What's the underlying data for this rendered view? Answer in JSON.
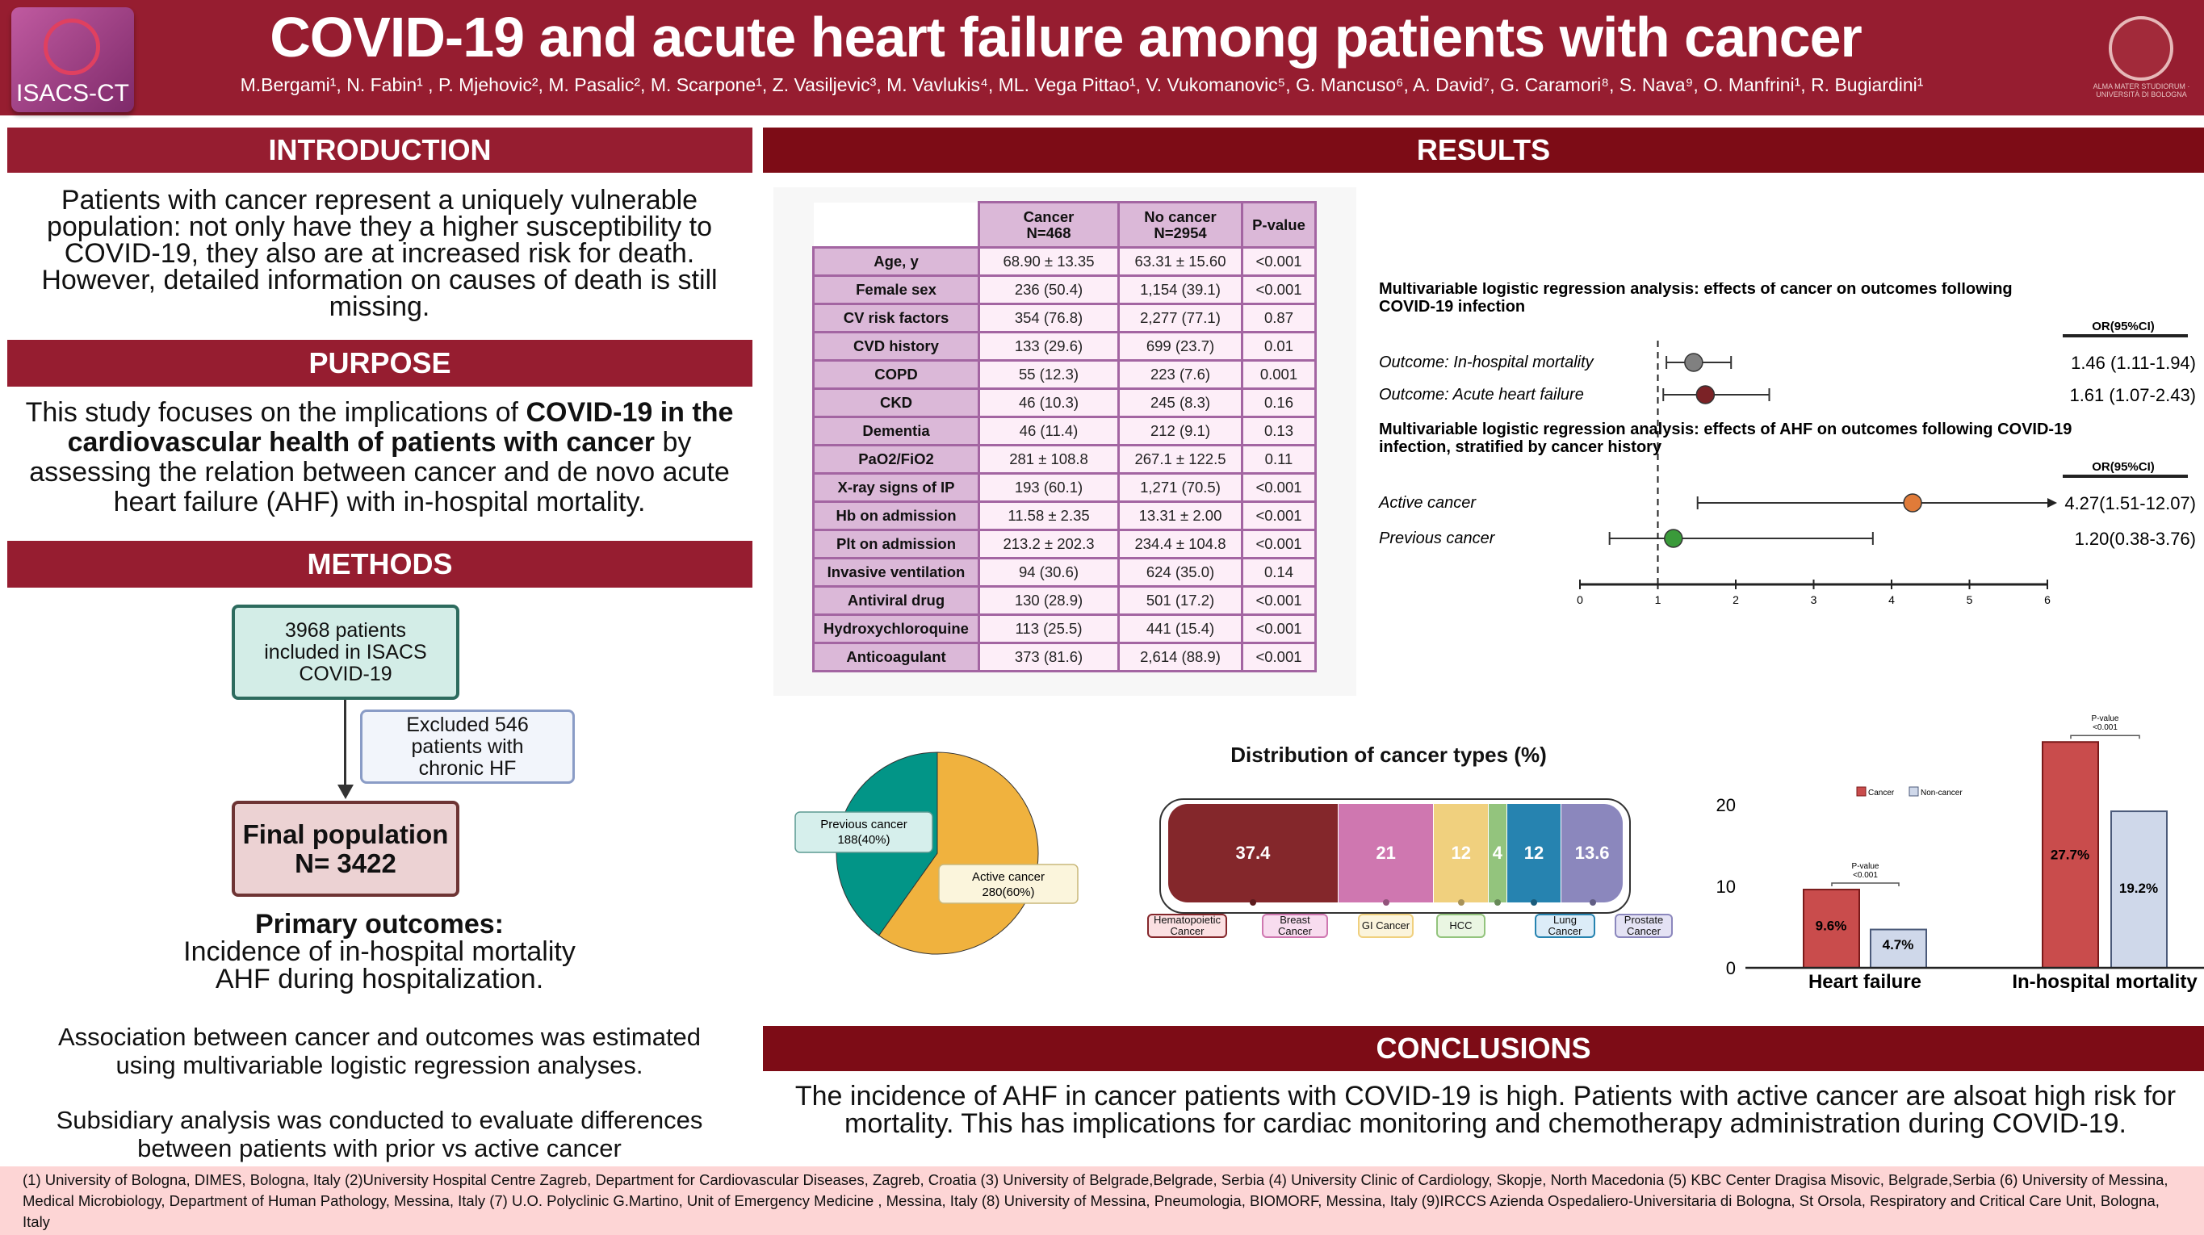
{
  "header": {
    "title": "COVID-19 and acute heart failure among patients with cancer",
    "authors": "M.Bergami¹,  N. Fabin¹ ,  P. Mjehovic²,   M. Pasalic²,  M. Scarpone¹, Z. Vasiljevic³,  M. Vavlukis⁴,  ML. Vega Pittao¹, V. Vukomanovic⁵,   G. Mancuso⁶,  A. David⁷,  G. Caramori⁸,  S. Nava⁹,  O. Manfrini¹,  R. Bugiardini¹",
    "logo_text": "ISACS-CT",
    "seal_text": "ALMA MATER STUDIORUM · UNIVERSITÀ DI BOLOGNA"
  },
  "introduction": {
    "heading": "INTRODUCTION",
    "text": "Patients with cancer represent a uniquely vulnerable population: not only have they a higher susceptibility to COVID-19, they also are at increased risk for death. However, detailed information on causes of death is still missing."
  },
  "purpose": {
    "heading": "PURPOSE",
    "text_1": "This study focuses on the implications of ",
    "bold_1": "COVID-19 in the cardiovascular health of patients with cancer",
    "text_2": "  by assessing the relation between cancer and de novo acute heart failure (AHF) with in-hospital mortality."
  },
  "methods": {
    "heading": "METHODS",
    "box_included": "3968 patients included in ISACS COVID-19",
    "box_excluded": "Excluded 546 patients with chronic HF",
    "box_final_1": "Final population",
    "box_final_2": "N= 3422",
    "primary_title": "Primary outcomes:",
    "primary_1": "Incidence of in-hospital mortality",
    "primary_2": "AHF during hospitalization.",
    "association": "Association between cancer and outcomes was estimated using multivariable logistic regression analyses.",
    "subsidiary": "Subsidiary analysis was conducted to evaluate differences between patients with prior vs active cancer"
  },
  "results": {
    "heading": "RESULTS"
  },
  "table": {
    "headers": [
      "",
      "Cancer\nN=468",
      "No cancer\nN=2954",
      "P-value"
    ],
    "rows": [
      [
        "Age, y",
        "68.90 ± 13.35",
        "63.31 ± 15.60",
        "<0.001"
      ],
      [
        "Female sex",
        "236 (50.4)",
        "1,154 (39.1)",
        "<0.001"
      ],
      [
        "CV risk factors",
        "354 (76.8)",
        "2,277 (77.1)",
        "0.87"
      ],
      [
        "CVD history",
        "133 (29.6)",
        "699 (23.7)",
        "0.01"
      ],
      [
        "COPD",
        "55 (12.3)",
        "223 (7.6)",
        "0.001"
      ],
      [
        "CKD",
        "46 (10.3)",
        "245 (8.3)",
        "0.16"
      ],
      [
        "Dementia",
        "46 (11.4)",
        "212 (9.1)",
        "0.13"
      ],
      [
        "PaO2/FiO2",
        "281 ± 108.8",
        "267.1 ± 122.5",
        "0.11"
      ],
      [
        "X-ray signs of IP",
        "193 (60.1)",
        "1,271 (70.5)",
        "<0.001"
      ],
      [
        "Hb on admission",
        "11.58 ± 2.35",
        "13.31 ± 2.00",
        "<0.001"
      ],
      [
        "Plt on admission",
        "213.2 ± 202.3",
        "234.4 ± 104.8",
        "<0.001"
      ],
      [
        "Invasive ventilation",
        "94 (30.6)",
        "624 (35.0)",
        "0.14"
      ],
      [
        "Antiviral drug",
        "130 (28.9)",
        "501 (17.2)",
        "<0.001"
      ],
      [
        "Hydroxychloroquine",
        "113 (25.5)",
        "441 (15.4)",
        "<0.001"
      ],
      [
        "Anticoagulant",
        "373 (81.6)",
        "2,614 (88.9)",
        "<0.001"
      ]
    ]
  },
  "conclusions": {
    "heading": "CONCLUSIONS",
    "text": "The incidence of AHF in cancer patients with COVID-19 is high. Patients with active cancer are alsoat high risk for mortality. This has implications for cardiac monitoring and chemotherapy administration during COVID-19."
  },
  "footer": {
    "text": "(1) University of Bologna, DIMES, Bologna, Italy (2)University Hospital Centre Zagreb, Department for Cardiovascular Diseases, Zagreb, Croatia (3) University of Belgrade,Belgrade, Serbia (4) University Clinic of Cardiology, Skopje, North Macedonia (5) KBC Center Dragisa Misovic, Belgrade,Serbia (6) University of Messina, Medical Microbiology, Department of Human Pathology, Messina, Italy (7) U.O. Polyclinic G.Martino, Unit of Emergency Medicine , Messina, Italy (8) University of Messina, Pneumologia, BIOMORF, Messina, Italy (9)IRCCS Azienda Ospedaliero-Universitaria di Bologna, St Orsola, Respiratory and Critical Care Unit, Bologna, Italy"
  },
  "chart_data": [
    {
      "type": "forest",
      "title": "Multivariable logistic regression analysis: effects of cancer on outcomes following COVID-19 infection",
      "column_header": "OR(95%CI)",
      "reference_line": 1,
      "rows": [
        {
          "label": "Outcome: In-hospital mortality",
          "or": 1.46,
          "lo": 1.11,
          "hi": 1.94,
          "text": "1.46 (1.11-1.94)",
          "color": "#808080"
        },
        {
          "label": "Outcome: Acute heart failure",
          "or": 1.61,
          "lo": 1.07,
          "hi": 2.43,
          "text": "1.61 (1.07-2.43)",
          "color": "#7b2226"
        }
      ]
    },
    {
      "type": "forest",
      "title": "Multivariable logistic regression analysis: effects of AHF on outcomes following COVID-19 infection, stratified by cancer history",
      "column_header": "OR(95%CI)",
      "reference_line": 1,
      "xlim": [
        0,
        6
      ],
      "xticks": [
        "0",
        "1",
        "2",
        "3",
        "4",
        "5",
        "6"
      ],
      "rows": [
        {
          "label": "Active cancer",
          "or": 4.27,
          "lo": 1.51,
          "hi": 12.07,
          "text": "4.27(1.51-12.07)",
          "color": "#e07b39"
        },
        {
          "label": "Previous cancer",
          "or": 1.2,
          "lo": 0.38,
          "hi": 3.76,
          "text": "1.20(0.38-3.76)",
          "color": "#3a9a3a"
        }
      ]
    },
    {
      "type": "pie",
      "slices": [
        {
          "label": "Previous cancer",
          "value": 188,
          "text": "188(40%)",
          "color": "#029587"
        },
        {
          "label": "Active cancer",
          "value": 280,
          "text": "280(60%)",
          "color": "#f0b23e"
        }
      ]
    },
    {
      "type": "bar",
      "stacked": true,
      "title": "Distribution of cancer types (%)",
      "segments": [
        {
          "label": "Hematopoietic Cancer",
          "value": 37.4,
          "text": "37.4",
          "color": "#84272b",
          "box": "#fbe0e2"
        },
        {
          "label": "Breast Cancer",
          "value": 21,
          "text": "21",
          "color": "#cf77b0",
          "box": "#f8dcef"
        },
        {
          "label": "GI Cancer",
          "value": 12,
          "text": "12",
          "color": "#f0d07e",
          "box": "#fbf4dc"
        },
        {
          "label": "HCC",
          "value": 4,
          "text": "4",
          "color": "#93c47d",
          "box": "#eaf6e2"
        },
        {
          "label": "Lung Cancer",
          "value": 12,
          "text": "12",
          "color": "#2683b0",
          "box": "#dcecf8"
        },
        {
          "label": "Prostate Cancer",
          "value": 13.6,
          "text": "13.6",
          "color": "#8b87bd",
          "box": "#e4e2f4"
        }
      ]
    },
    {
      "type": "bar",
      "categories": [
        "Heart failure",
        "In-hospital mortality"
      ],
      "yticks": [
        "0",
        "10",
        "20"
      ],
      "ylim": [
        0,
        30
      ],
      "series": [
        {
          "name": "Cancer",
          "values": [
            9.6,
            27.7
          ],
          "labels": [
            "9.6%",
            "27.7%"
          ],
          "color": "#c94c4c"
        },
        {
          "name": "Non-cancer",
          "values": [
            4.7,
            19.2
          ],
          "labels": [
            "4.7%",
            "19.2%"
          ],
          "color": "#cfd8ea"
        }
      ],
      "annotations": [
        {
          "category": "Heart failure",
          "text": "P-value\n<0.001"
        },
        {
          "category": "In-hospital mortality",
          "text": "P-value\n<0.001"
        }
      ]
    }
  ]
}
